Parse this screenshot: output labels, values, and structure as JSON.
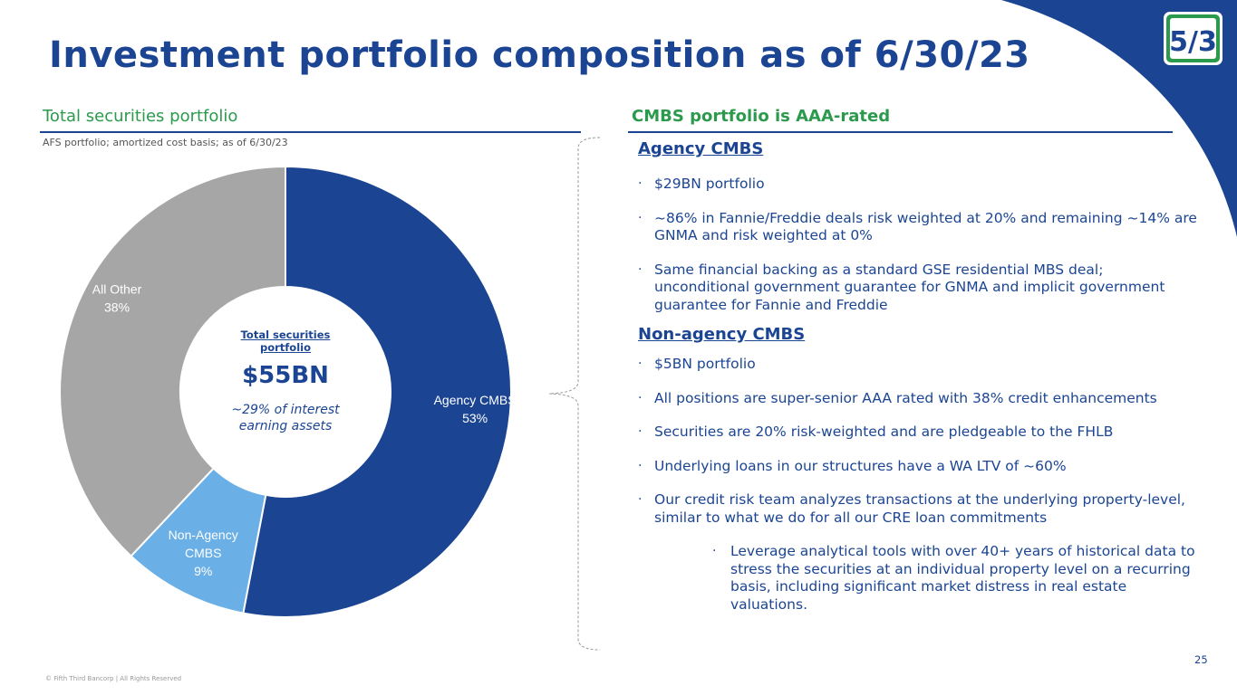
{
  "title": "Investment portfolio composition as of 6/30/23",
  "left_section": {
    "heading": "Total securities portfolio",
    "note": "AFS portfolio; amortized cost basis; as of 6/30/23"
  },
  "donut_center": {
    "title_line1": "Total securities",
    "title_line2": "portfolio",
    "value": "$55BN",
    "sub_line1": "~29% of interest",
    "sub_line2": "earning assets"
  },
  "chart_data": {
    "type": "pie",
    "title": "",
    "categories": [
      "Agency CMBS",
      "Non-Agency CMBS",
      "All Other"
    ],
    "values": [
      53,
      9,
      38
    ],
    "display_labels": [
      [
        "Agency CMBS",
        "53%"
      ],
      [
        "Non-Agency",
        "CMBS",
        "9%"
      ],
      [
        "All Other",
        "38%"
      ]
    ],
    "colors": [
      "#1b4593",
      "#6aafe6",
      "#a6a6a6"
    ],
    "legend": "none"
  },
  "right_section": {
    "heading": "CMBS portfolio is AAA-rated",
    "agency": {
      "heading": "Agency CMBS",
      "bullets": [
        "$29BN portfolio",
        "~86% in Fannie/Freddie deals risk weighted at 20% and remaining ~14% are GNMA and risk weighted at 0%",
        "Same financial backing as a standard GSE residential MBS deal; unconditional government guarantee for GNMA and implicit government guarantee for Fannie and Freddie"
      ]
    },
    "nonagency": {
      "heading": "Non-agency CMBS",
      "bullets": [
        "$5BN portfolio",
        "All positions are super-senior AAA rated with 38% credit enhancements",
        "Securities are 20% risk-weighted and are pledgeable to the FHLB",
        "Underlying loans in our structures have a WA LTV of ~60%",
        "Our credit risk team analyzes transactions at the underlying property-level, similar to what we do for all our CRE loan commitments"
      ],
      "sub_bullet": "Leverage analytical tools with over 40+ years of historical data to stress the securities at an individual property level on a recurring basis, including significant market distress in real estate valuations."
    },
    "bullet_char": "·"
  },
  "logo_text": "5/3",
  "footer": "© Fifth Third Bancorp | All Rights Reserved",
  "page_number": "25",
  "colors": {
    "navy": "#1b4593",
    "green": "#2b9a4c",
    "light_blue": "#6aafe6",
    "gray": "#a6a6a6"
  }
}
